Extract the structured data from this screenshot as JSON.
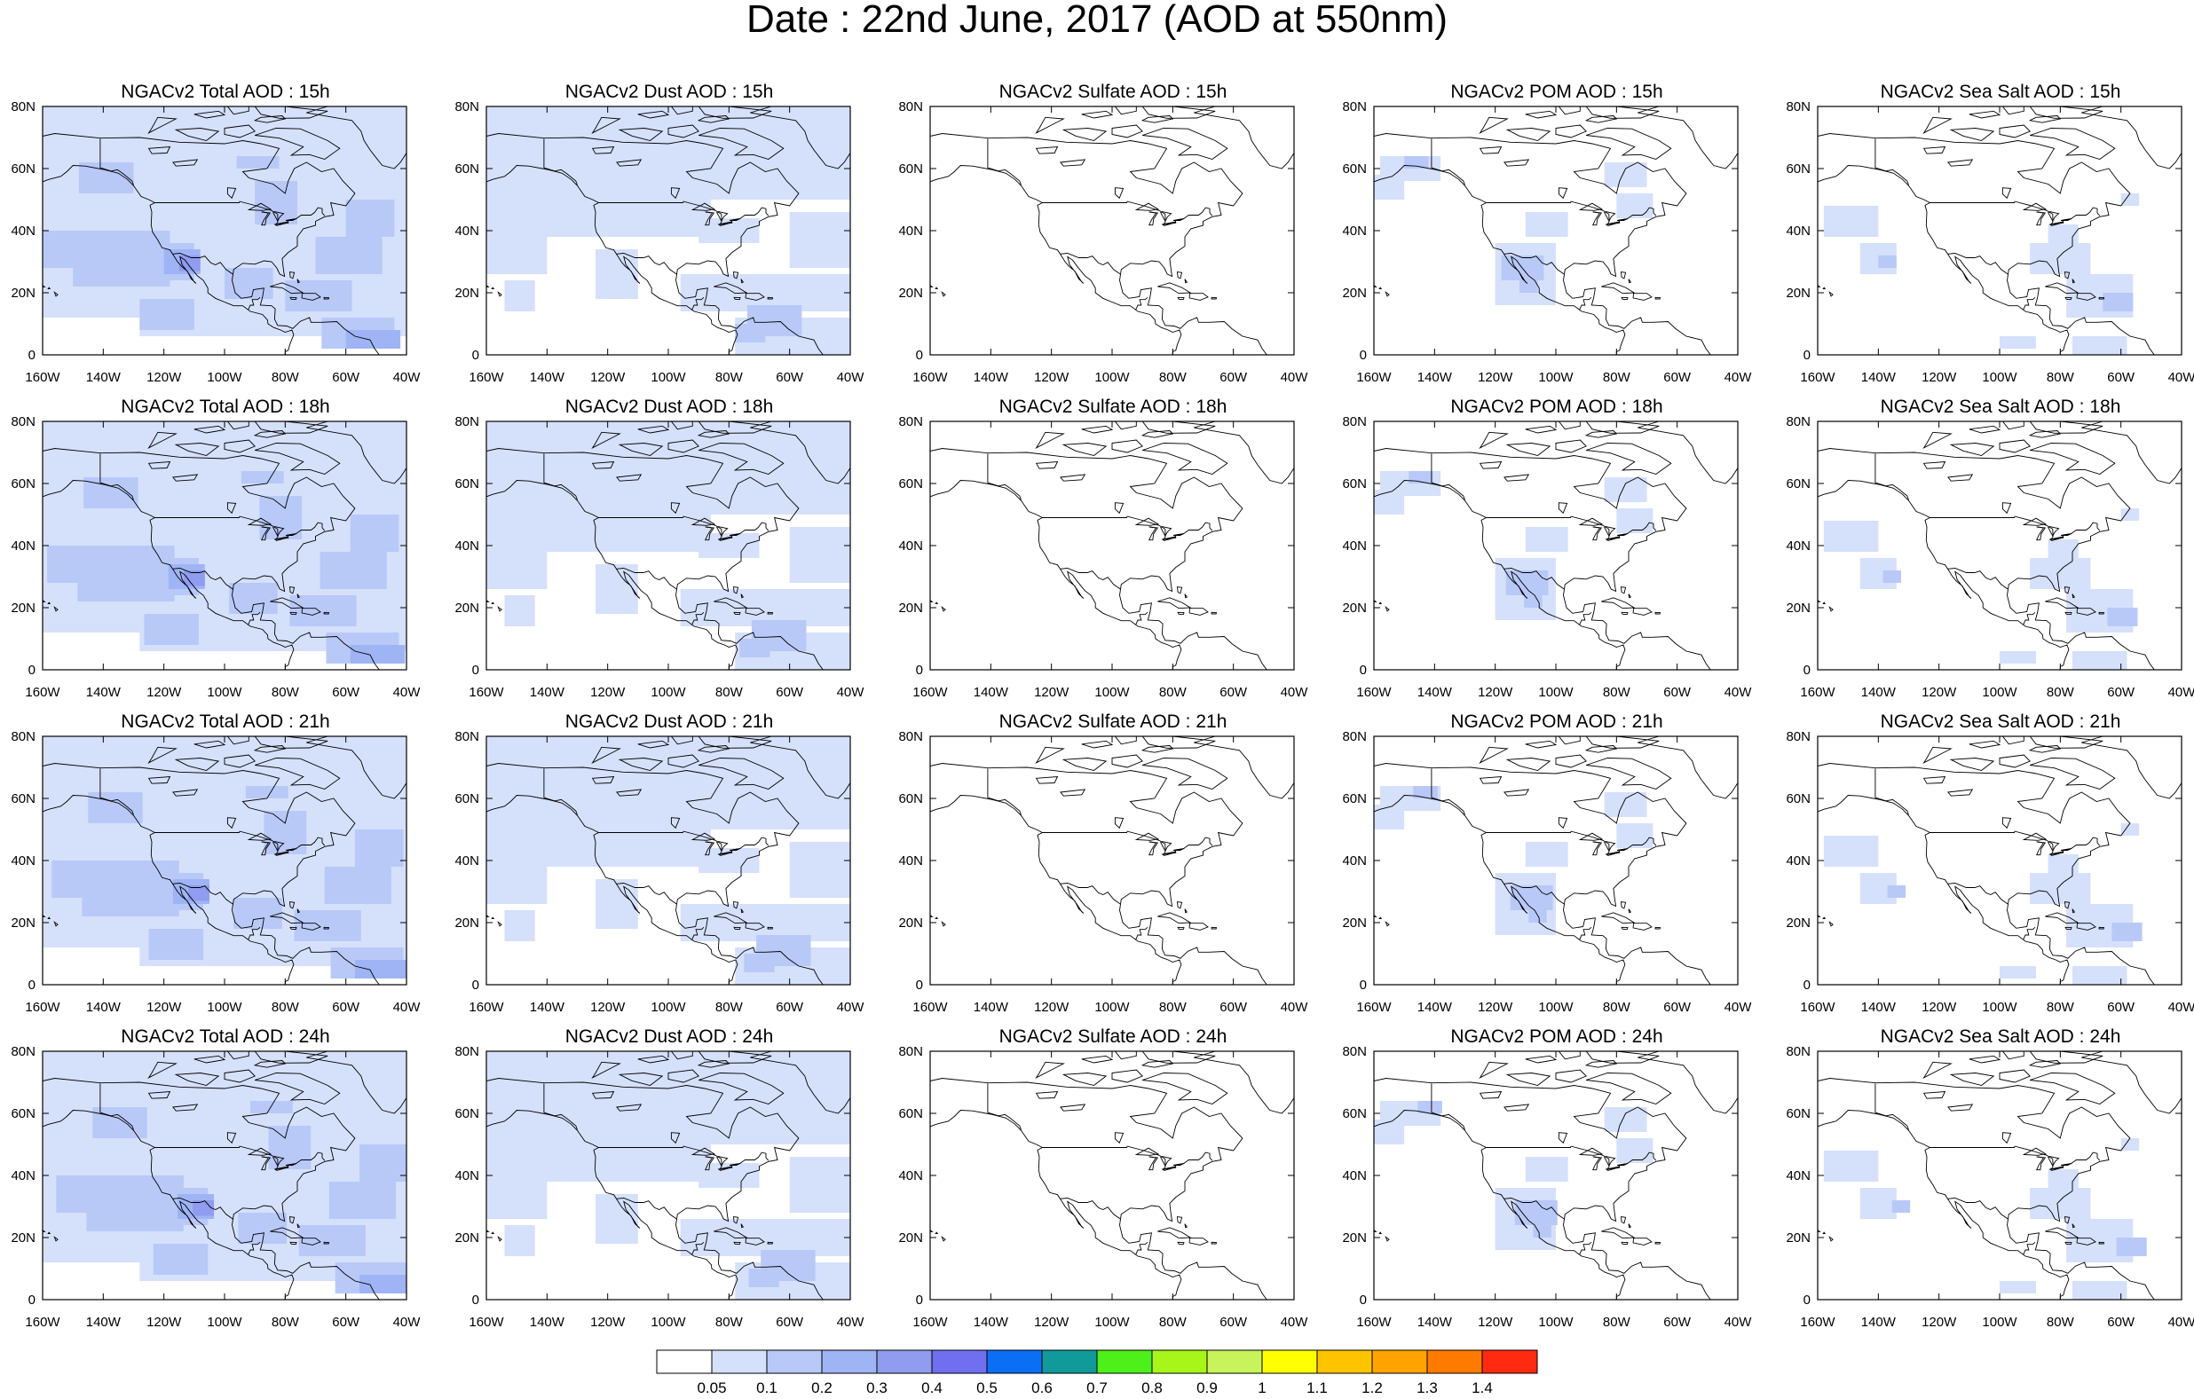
{
  "title": "Date : 22nd June, 2017 (AOD at 550nm)",
  "colors": {
    "shade_1": "#d5e0fb",
    "shade_2": "#b8c9f8",
    "shade_3": "#9fb4f5",
    "shade_4": "#8f9cef",
    "land_outline": "#000000"
  },
  "x_tick_labels": [
    "160W",
    "140W",
    "120W",
    "100W",
    "80W",
    "60W",
    "40W"
  ],
  "y_tick_labels": [
    "0",
    "20N",
    "40N",
    "60N",
    "80N"
  ],
  "panels": [
    {
      "title": "NGACv2 Total AOD : 15h",
      "variable": "total",
      "hour": "15h"
    },
    {
      "title": "NGACv2 Dust AOD : 15h",
      "variable": "dust",
      "hour": "15h"
    },
    {
      "title": "NGACv2 Sulfate AOD : 15h",
      "variable": "sulfate",
      "hour": "15h"
    },
    {
      "title": "NGACv2 POM AOD : 15h",
      "variable": "pom",
      "hour": "15h"
    },
    {
      "title": "NGACv2 Sea Salt AOD : 15h",
      "variable": "seasalt",
      "hour": "15h"
    },
    {
      "title": "NGACv2 Total AOD : 18h",
      "variable": "total",
      "hour": "18h"
    },
    {
      "title": "NGACv2 Dust AOD : 18h",
      "variable": "dust",
      "hour": "18h"
    },
    {
      "title": "NGACv2 Sulfate AOD : 18h",
      "variable": "sulfate",
      "hour": "18h"
    },
    {
      "title": "NGACv2 POM AOD : 18h",
      "variable": "pom",
      "hour": "18h"
    },
    {
      "title": "NGACv2 Sea Salt AOD : 18h",
      "variable": "seasalt",
      "hour": "18h"
    },
    {
      "title": "NGACv2 Total AOD : 21h",
      "variable": "total",
      "hour": "21h"
    },
    {
      "title": "NGACv2 Dust AOD : 21h",
      "variable": "dust",
      "hour": "21h"
    },
    {
      "title": "NGACv2 Sulfate AOD : 21h",
      "variable": "sulfate",
      "hour": "21h"
    },
    {
      "title": "NGACv2 POM AOD : 21h",
      "variable": "pom",
      "hour": "21h"
    },
    {
      "title": "NGACv2 Sea Salt AOD : 21h",
      "variable": "seasalt",
      "hour": "21h"
    },
    {
      "title": "NGACv2 Total AOD : 24h",
      "variable": "total",
      "hour": "24h"
    },
    {
      "title": "NGACv2 Dust AOD : 24h",
      "variable": "dust",
      "hour": "24h"
    },
    {
      "title": "NGACv2 Sulfate AOD : 24h",
      "variable": "sulfate",
      "hour": "24h"
    },
    {
      "title": "NGACv2 POM AOD : 24h",
      "variable": "pom",
      "hour": "24h"
    },
    {
      "title": "NGACv2 Sea Salt  AOD : 24h",
      "variable": "seasalt",
      "hour": "24h"
    }
  ],
  "colorbar": {
    "colors": [
      "#ffffff",
      "#d5e0fb",
      "#b8c9f8",
      "#9fb4f5",
      "#8f9cef",
      "#6f6ff0",
      "#0b6ff5",
      "#119a9a",
      "#4ef01a",
      "#a8f51a",
      "#c8f35a",
      "#ffff00",
      "#ffc400",
      "#ffa300",
      "#ff7a00",
      "#ff2a10"
    ],
    "labels": [
      "0.05",
      "0.1",
      "0.2",
      "0.3",
      "0.4",
      "0.5",
      "0.6",
      "0.7",
      "0.8",
      "0.9",
      "1",
      "1.1",
      "1.2",
      "1.3",
      "1.4"
    ]
  }
}
